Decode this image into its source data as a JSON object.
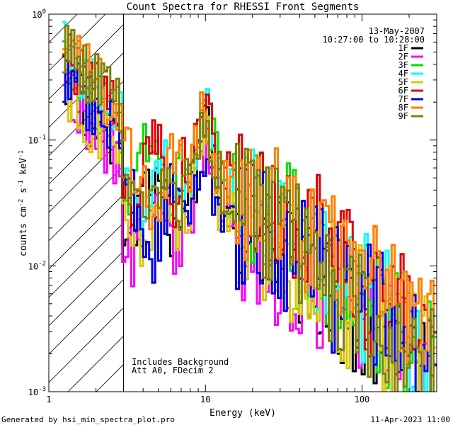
{
  "chart_data": {
    "type": "line",
    "title": "Count Spectra for RHESSI Front Segments",
    "xlabel": "Energy (keV)",
    "ylabel": "counts cm^-2 s^-1 keV^-1",
    "xscale": "log",
    "yscale": "log",
    "xlim": [
      1.0,
      300.0
    ],
    "ylim": [
      0.001,
      1.0
    ],
    "x_tick_labels": [
      {
        "value": 1,
        "label": "1"
      },
      {
        "value": 10,
        "label": "10"
      },
      {
        "value": 100,
        "label": "100"
      }
    ],
    "y_tick_labels": [
      {
        "value": 0.001,
        "base": "10",
        "exp": "-3"
      },
      {
        "value": 0.01,
        "base": "10",
        "exp": "-2"
      },
      {
        "value": 0.1,
        "base": "10",
        "exp": "-1"
      },
      {
        "value": 1.0,
        "base": "10",
        "exp": "0"
      }
    ],
    "date": "13-May-2007",
    "time_range": "10:27:00 to 10:28:00",
    "threshold_energy_keV": 3.0,
    "annotations": [
      "Includes Background",
      "Att A0, FDecim 2"
    ],
    "footer_left": "Generated by hsi_min_spectra_plot.pro",
    "footer_right": "11-Apr-2023 11:00",
    "peak_energy_keV": 10.0,
    "series": [
      {
        "name": "1F",
        "color": "#000000",
        "seed": 11,
        "a": 0.27,
        "s": 1.52,
        "c": 0.03,
        "p": 0.075,
        "tail": 0.0025,
        "edge": 0.0014
      },
      {
        "name": "2F",
        "color": "#ff00ff",
        "seed": 23,
        "a": 0.24,
        "s": 1.62,
        "c": 0.022,
        "p": 0.055,
        "tail": 0.0022,
        "edge": 0.0012
      },
      {
        "name": "3F",
        "color": "#00e000",
        "seed": 37,
        "a": 0.36,
        "s": 1.3,
        "c": 0.052,
        "p": 0.07,
        "tail": 0.002,
        "edge": 0.0013
      },
      {
        "name": "4F",
        "color": "#00ffff",
        "seed": 41,
        "a": 0.46,
        "s": 1.45,
        "c": 0.042,
        "p": 0.085,
        "tail": 0.004,
        "edge": 0.002
      },
      {
        "name": "5F",
        "color": "#d8c800",
        "seed": 53,
        "a": 0.26,
        "s": 1.72,
        "c": 0.026,
        "p": 0.055,
        "tail": 0.0035,
        "edge": 0.0016
      },
      {
        "name": "6F",
        "color": "#e00000",
        "seed": 67,
        "a": 0.46,
        "s": 1.18,
        "c": 0.062,
        "p": 0.095,
        "tail": 0.005,
        "edge": 0.0025
      },
      {
        "name": "7F",
        "color": "#0000e0",
        "seed": 71,
        "a": 0.28,
        "s": 1.1,
        "c": 0.025,
        "p": 0.04,
        "tail": 0.0045,
        "edge": 0.002
      },
      {
        "name": "8F",
        "color": "#ff8000",
        "seed": 83,
        "a": 0.5,
        "s": 1.38,
        "c": 0.048,
        "p": 0.08,
        "tail": 0.0055,
        "edge": 0.0024
      },
      {
        "name": "9F",
        "color": "#808000",
        "seed": 97,
        "a": 0.5,
        "s": 1.32,
        "c": 0.042,
        "p": 0.085,
        "tail": 0.0025,
        "edge": 0.0012
      }
    ]
  }
}
